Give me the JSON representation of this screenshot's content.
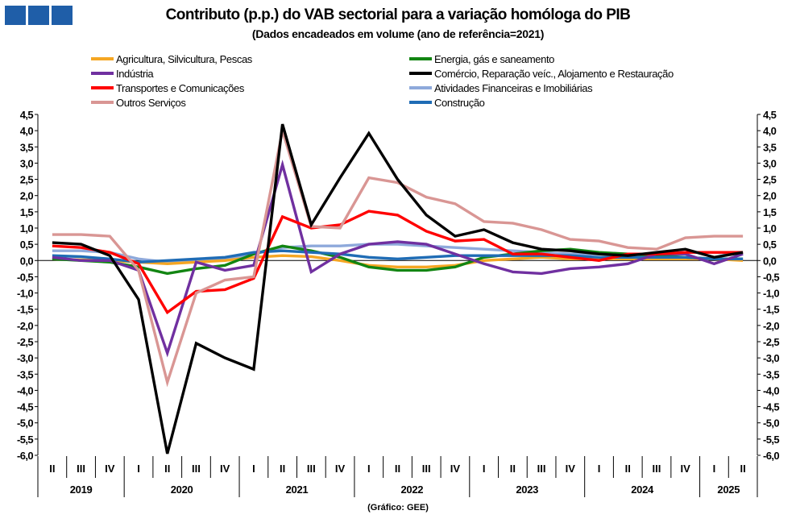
{
  "header": {
    "title": "Contributo (p.p.) do VAB sectorial para a variação homóloga do PIB",
    "subtitle": "(Dados encadeados em volume (ano de referência=2021)",
    "source": "(Gráfico: GEE)"
  },
  "chart_data": {
    "type": "line",
    "ylim": [
      -6.0,
      4.5
    ],
    "ytick_step": 0.5,
    "grid": false,
    "legend_placement": "top",
    "quarters": [
      "II",
      "III",
      "IV",
      "I",
      "II",
      "III",
      "IV",
      "I",
      "II",
      "III",
      "IV",
      "I",
      "II",
      "III",
      "IV",
      "I",
      "II",
      "III",
      "IV",
      "I",
      "II",
      "III",
      "IV",
      "I",
      "II"
    ],
    "years": [
      {
        "label": "2019",
        "count": 3
      },
      {
        "label": "2020",
        "count": 4
      },
      {
        "label": "2021",
        "count": 4
      },
      {
        "label": "2022",
        "count": 4
      },
      {
        "label": "2023",
        "count": 4
      },
      {
        "label": "2024",
        "count": 4
      },
      {
        "label": "2025",
        "count": 2
      }
    ],
    "series": [
      {
        "name": "Agricultura, Silvicultura, Pescas",
        "color": "#f5a623",
        "values": [
          0.05,
          0.02,
          0.0,
          -0.05,
          -0.1,
          -0.05,
          0.0,
          0.1,
          0.15,
          0.12,
          0.0,
          -0.15,
          -0.2,
          -0.2,
          -0.15,
          0.0,
          0.05,
          0.1,
          0.05,
          0.05,
          0.05,
          0.05,
          0.05,
          0.05,
          0.0
        ]
      },
      {
        "name": "Energia, gás e saneamento",
        "color": "#128512",
        "values": [
          0.05,
          0.0,
          -0.05,
          -0.2,
          -0.4,
          -0.25,
          -0.15,
          0.2,
          0.45,
          0.3,
          0.1,
          -0.2,
          -0.3,
          -0.3,
          -0.2,
          0.1,
          0.2,
          0.3,
          0.35,
          0.25,
          0.2,
          0.15,
          0.1,
          0.05,
          0.05
        ]
      },
      {
        "name": "Indústria",
        "color": "#7030a0",
        "values": [
          0.1,
          0.0,
          0.0,
          -0.3,
          -2.85,
          -0.05,
          -0.3,
          -0.15,
          2.95,
          -0.35,
          0.2,
          0.5,
          0.58,
          0.5,
          0.2,
          -0.1,
          -0.35,
          -0.4,
          -0.25,
          -0.2,
          -0.1,
          0.2,
          0.2,
          -0.1,
          0.2
        ]
      },
      {
        "name": "Comércio, Reparação veíc., Alojamento e Restauração",
        "color": "#000000",
        "values": [
          0.55,
          0.5,
          0.15,
          -1.2,
          -5.95,
          -2.55,
          -3.0,
          -3.35,
          4.2,
          1.1,
          2.55,
          3.92,
          2.5,
          1.4,
          0.75,
          0.95,
          0.55,
          0.35,
          0.3,
          0.2,
          0.15,
          0.25,
          0.35,
          0.1,
          0.25
        ]
      },
      {
        "name": "Transportes e Comunicações",
        "color": "#ff0000",
        "values": [
          0.45,
          0.4,
          0.25,
          -0.1,
          -1.6,
          -0.95,
          -0.9,
          -0.55,
          1.35,
          1.0,
          1.1,
          1.52,
          1.4,
          0.9,
          0.6,
          0.65,
          0.2,
          0.2,
          0.1,
          0.0,
          0.2,
          0.2,
          0.25,
          0.25,
          0.25
        ]
      },
      {
        "name": "Atividades Financeiras e Imobiliárias",
        "color": "#8ea9db",
        "values": [
          0.3,
          0.3,
          0.25,
          0.05,
          -0.05,
          0.0,
          0.05,
          0.2,
          0.4,
          0.45,
          0.45,
          0.5,
          0.5,
          0.45,
          0.4,
          0.35,
          0.3,
          0.25,
          0.2,
          0.2,
          0.2,
          0.2,
          0.25,
          0.25,
          0.2
        ]
      },
      {
        "name": "Outros Serviços",
        "color": "#d99694",
        "values": [
          0.8,
          0.8,
          0.75,
          -0.3,
          -3.75,
          -1.0,
          -0.6,
          -0.5,
          4.0,
          1.05,
          1.0,
          2.55,
          2.4,
          1.95,
          1.75,
          1.2,
          1.15,
          0.95,
          0.65,
          0.6,
          0.4,
          0.35,
          0.7,
          0.75,
          0.75
        ]
      },
      {
        "name": "Construção",
        "color": "#1f6cb5",
        "values": [
          0.15,
          0.12,
          0.05,
          -0.05,
          0.0,
          0.05,
          0.1,
          0.25,
          0.3,
          0.25,
          0.2,
          0.1,
          0.05,
          0.1,
          0.15,
          0.15,
          0.15,
          0.15,
          0.15,
          0.1,
          0.1,
          0.1,
          0.1,
          0.05,
          0.05
        ]
      }
    ]
  }
}
